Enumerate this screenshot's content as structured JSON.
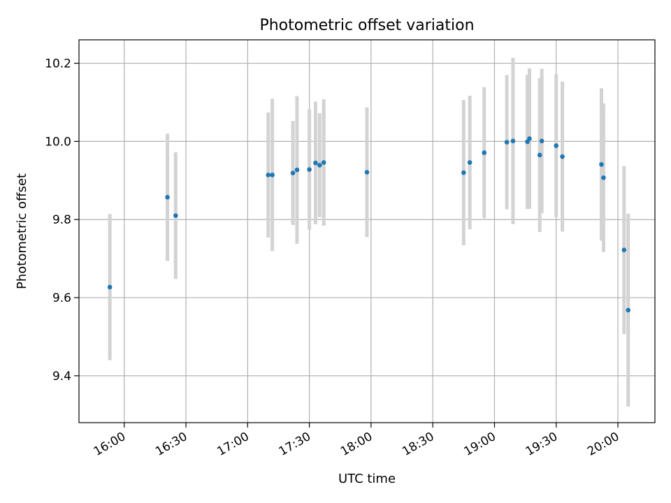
{
  "chart_data": {
    "type": "scatter",
    "title": "Photometric offset variation",
    "xlabel": "UTC time",
    "ylabel": "Photometric offset",
    "x_axis_type": "time",
    "xlim": [
      "15:38",
      "20:18"
    ],
    "ylim": [
      9.28,
      10.26
    ],
    "grid": true,
    "x_ticks": [
      "16:00",
      "16:30",
      "17:00",
      "17:30",
      "18:00",
      "18:30",
      "19:00",
      "19:30",
      "20:00"
    ],
    "y_ticks": [
      "9.4",
      "9.6",
      "9.8",
      "10.0",
      "10.2"
    ],
    "point_color": "#1f77b4",
    "errorbar_color": "#d3d3d3",
    "points": [
      {
        "x": "15:53",
        "y": 9.627,
        "err": 0.187
      },
      {
        "x": "16:21",
        "y": 9.857,
        "err": 0.163
      },
      {
        "x": "16:25",
        "y": 9.81,
        "err": 0.162
      },
      {
        "x": "17:10",
        "y": 9.914,
        "err": 0.16
      },
      {
        "x": "17:12",
        "y": 9.914,
        "err": 0.195
      },
      {
        "x": "17:22",
        "y": 9.919,
        "err": 0.133
      },
      {
        "x": "17:24",
        "y": 9.927,
        "err": 0.189
      },
      {
        "x": "17:30",
        "y": 9.928,
        "err": 0.154
      },
      {
        "x": "17:33",
        "y": 9.945,
        "err": 0.157
      },
      {
        "x": "17:35",
        "y": 9.939,
        "err": 0.133
      },
      {
        "x": "17:37",
        "y": 9.946,
        "err": 0.162
      },
      {
        "x": "17:58",
        "y": 9.921,
        "err": 0.166
      },
      {
        "x": "18:45",
        "y": 9.92,
        "err": 0.186
      },
      {
        "x": "18:48",
        "y": 9.946,
        "err": 0.171
      },
      {
        "x": "18:55",
        "y": 9.971,
        "err": 0.168
      },
      {
        "x": "19:06",
        "y": 9.998,
        "err": 0.172
      },
      {
        "x": "19:09",
        "y": 10.001,
        "err": 0.213
      },
      {
        "x": "19:16",
        "y": 9.999,
        "err": 0.172
      },
      {
        "x": "19:17",
        "y": 10.007,
        "err": 0.18
      },
      {
        "x": "19:22",
        "y": 9.965,
        "err": 0.197
      },
      {
        "x": "19:23",
        "y": 10.001,
        "err": 0.185
      },
      {
        "x": "19:30",
        "y": 9.989,
        "err": 0.183
      },
      {
        "x": "19:33",
        "y": 9.961,
        "err": 0.192
      },
      {
        "x": "19:52",
        "y": 9.941,
        "err": 0.195
      },
      {
        "x": "19:53",
        "y": 9.907,
        "err": 0.19
      },
      {
        "x": "20:03",
        "y": 9.722,
        "err": 0.215
      },
      {
        "x": "20:05",
        "y": 9.568,
        "err": 0.247
      }
    ]
  }
}
